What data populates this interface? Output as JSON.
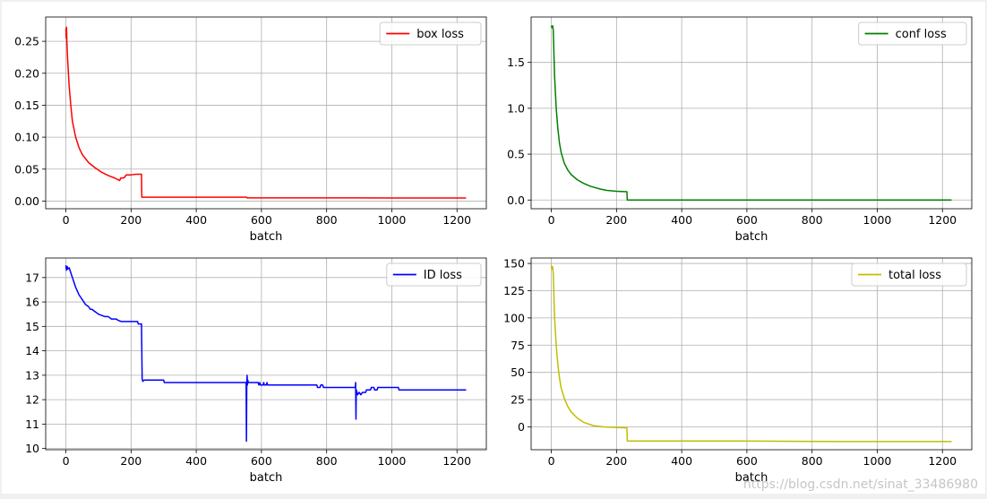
{
  "watermark": "https://blog.csdn.net/sinat_33486980",
  "chart_data": [
    {
      "type": "line",
      "xlabel": "batch",
      "ylabel": "",
      "xlim": [
        -62,
        1290
      ],
      "ylim": [
        -0.012,
        0.288
      ],
      "xticks": [
        0,
        200,
        400,
        600,
        800,
        1000,
        1200
      ],
      "yticks": [
        0.0,
        0.05,
        0.1,
        0.15,
        0.2,
        0.25
      ],
      "ytick_labels": [
        "0.00",
        "0.05",
        "0.10",
        "0.15",
        "0.20",
        "0.25"
      ],
      "grid": true,
      "legend_position": "top-right",
      "series": [
        {
          "name": "box loss",
          "color": "#ff0000",
          "points": [
            [
              0,
              0.27
            ],
            [
              1,
              0.255
            ],
            [
              2,
              0.272
            ],
            [
              3,
              0.25
            ],
            [
              5,
              0.225
            ],
            [
              10,
              0.18
            ],
            [
              15,
              0.15
            ],
            [
              20,
              0.125
            ],
            [
              30,
              0.1
            ],
            [
              40,
              0.084
            ],
            [
              50,
              0.073
            ],
            [
              70,
              0.06
            ],
            [
              90,
              0.052
            ],
            [
              110,
              0.045
            ],
            [
              130,
              0.04
            ],
            [
              150,
              0.036
            ],
            [
              162,
              0.033
            ],
            [
              165,
              0.032
            ],
            [
              168,
              0.036
            ],
            [
              175,
              0.036
            ],
            [
              180,
              0.037
            ],
            [
              185,
              0.041
            ],
            [
              200,
              0.041
            ],
            [
              215,
              0.042
            ],
            [
              232,
              0.042
            ],
            [
              233,
              0.006
            ],
            [
              300,
              0.006
            ],
            [
              400,
              0.006
            ],
            [
              555,
              0.006
            ],
            [
              556,
              0.005
            ],
            [
              700,
              0.005
            ],
            [
              900,
              0.005
            ],
            [
              1000,
              0.0048
            ],
            [
              1228,
              0.0048
            ]
          ]
        }
      ]
    },
    {
      "type": "line",
      "xlabel": "batch",
      "ylabel": "",
      "xlim": [
        -62,
        1290
      ],
      "ylim": [
        -0.095,
        1.995
      ],
      "xticks": [
        0,
        200,
        400,
        600,
        800,
        1000,
        1200
      ],
      "yticks": [
        0.0,
        0.5,
        1.0,
        1.5
      ],
      "ytick_labels": [
        "0.0",
        "0.5",
        "1.0",
        "1.5"
      ],
      "grid": true,
      "legend_position": "top-right",
      "series": [
        {
          "name": "conf loss",
          "color": "#008000",
          "points": [
            [
              0,
              1.9
            ],
            [
              2,
              1.88
            ],
            [
              4,
              1.9
            ],
            [
              6,
              1.85
            ],
            [
              8,
              1.6
            ],
            [
              10,
              1.35
            ],
            [
              15,
              1.0
            ],
            [
              20,
              0.78
            ],
            [
              25,
              0.62
            ],
            [
              30,
              0.52
            ],
            [
              40,
              0.4
            ],
            [
              50,
              0.33
            ],
            [
              60,
              0.28
            ],
            [
              80,
              0.22
            ],
            [
              100,
              0.18
            ],
            [
              120,
              0.15
            ],
            [
              150,
              0.12
            ],
            [
              170,
              0.105
            ],
            [
              200,
              0.095
            ],
            [
              232,
              0.09
            ],
            [
              233,
              0.0
            ],
            [
              400,
              0.0
            ],
            [
              800,
              0.0
            ],
            [
              1228,
              0.0
            ]
          ]
        }
      ]
    },
    {
      "type": "line",
      "xlabel": "batch",
      "ylabel": "",
      "xlim": [
        -62,
        1290
      ],
      "ylim": [
        9.95,
        17.8
      ],
      "xticks": [
        0,
        200,
        400,
        600,
        800,
        1000,
        1200
      ],
      "yticks": [
        10,
        11,
        12,
        13,
        14,
        15,
        16,
        17
      ],
      "ytick_labels": [
        "10",
        "11",
        "12",
        "13",
        "14",
        "15",
        "16",
        "17"
      ],
      "grid": true,
      "legend_position": "top-right",
      "series": [
        {
          "name": "ID loss",
          "color": "#0000ff",
          "points": [
            [
              0,
              17.5
            ],
            [
              2,
              17.3
            ],
            [
              4,
              17.45
            ],
            [
              6,
              17.35
            ],
            [
              10,
              17.4
            ],
            [
              15,
              17.2
            ],
            [
              20,
              17.0
            ],
            [
              25,
              16.8
            ],
            [
              30,
              16.6
            ],
            [
              35,
              16.45
            ],
            [
              40,
              16.3
            ],
            [
              45,
              16.2
            ],
            [
              50,
              16.1
            ],
            [
              55,
              16.0
            ],
            [
              60,
              15.9
            ],
            [
              65,
              15.85
            ],
            [
              70,
              15.8
            ],
            [
              75,
              15.7
            ],
            [
              80,
              15.7
            ],
            [
              90,
              15.6
            ],
            [
              100,
              15.5
            ],
            [
              110,
              15.45
            ],
            [
              120,
              15.4
            ],
            [
              130,
              15.4
            ],
            [
              140,
              15.3
            ],
            [
              155,
              15.3
            ],
            [
              160,
              15.25
            ],
            [
              170,
              15.2
            ],
            [
              220,
              15.2
            ],
            [
              222,
              15.1
            ],
            [
              232,
              15.1
            ],
            [
              234,
              12.85
            ],
            [
              236,
              12.75
            ],
            [
              240,
              12.8
            ],
            [
              300,
              12.8
            ],
            [
              302,
              12.7
            ],
            [
              553,
              12.7
            ],
            [
              554,
              10.3
            ],
            [
              555,
              12.7
            ],
            [
              556,
              13.0
            ],
            [
              557,
              12.6
            ],
            [
              558,
              12.8
            ],
            [
              560,
              12.7
            ],
            [
              590,
              12.7
            ],
            [
              592,
              12.6
            ],
            [
              595,
              12.7
            ],
            [
              597,
              12.6
            ],
            [
              605,
              12.6
            ],
            [
              607,
              12.7
            ],
            [
              609,
              12.6
            ],
            [
              615,
              12.6
            ],
            [
              617,
              12.7
            ],
            [
              619,
              12.6
            ],
            [
              770,
              12.6
            ],
            [
              772,
              12.5
            ],
            [
              780,
              12.5
            ],
            [
              782,
              12.6
            ],
            [
              788,
              12.6
            ],
            [
              790,
              12.5
            ],
            [
              888,
              12.5
            ],
            [
              889,
              12.7
            ],
            [
              890,
              11.2
            ],
            [
              891,
              12.4
            ],
            [
              895,
              12.2
            ],
            [
              900,
              12.3
            ],
            [
              905,
              12.2
            ],
            [
              910,
              12.3
            ],
            [
              920,
              12.3
            ],
            [
              922,
              12.4
            ],
            [
              935,
              12.4
            ],
            [
              937,
              12.5
            ],
            [
              945,
              12.5
            ],
            [
              947,
              12.4
            ],
            [
              955,
              12.4
            ],
            [
              957,
              12.5
            ],
            [
              1020,
              12.5
            ],
            [
              1022,
              12.4
            ],
            [
              1228,
              12.4
            ]
          ]
        }
      ]
    },
    {
      "type": "line",
      "xlabel": "batch",
      "ylabel": "",
      "xlim": [
        -62,
        1290
      ],
      "ylim": [
        -21,
        155
      ],
      "xticks": [
        0,
        200,
        400,
        600,
        800,
        1000,
        1200
      ],
      "yticks": [
        0,
        25,
        50,
        75,
        100,
        125,
        150
      ],
      "ytick_labels": [
        "0",
        "25",
        "50",
        "75",
        "100",
        "125",
        "150"
      ],
      "grid": true,
      "legend_position": "top-right",
      "series": [
        {
          "name": "total loss",
          "color": "#bfbf00",
          "points": [
            [
              0,
              148
            ],
            [
              2,
              145
            ],
            [
              4,
              147
            ],
            [
              6,
              140
            ],
            [
              8,
              120
            ],
            [
              10,
              100
            ],
            [
              15,
              75
            ],
            [
              20,
              57
            ],
            [
              25,
              45
            ],
            [
              30,
              36
            ],
            [
              40,
              26
            ],
            [
              50,
              19
            ],
            [
              60,
              14
            ],
            [
              80,
              8
            ],
            [
              100,
              4
            ],
            [
              130,
              1
            ],
            [
              160,
              0
            ],
            [
              200,
              -0.5
            ],
            [
              232,
              -1
            ],
            [
              233,
              -13
            ],
            [
              400,
              -13
            ],
            [
              560,
              -13
            ],
            [
              900,
              -13.5
            ],
            [
              1228,
              -13.5
            ]
          ]
        }
      ]
    }
  ]
}
